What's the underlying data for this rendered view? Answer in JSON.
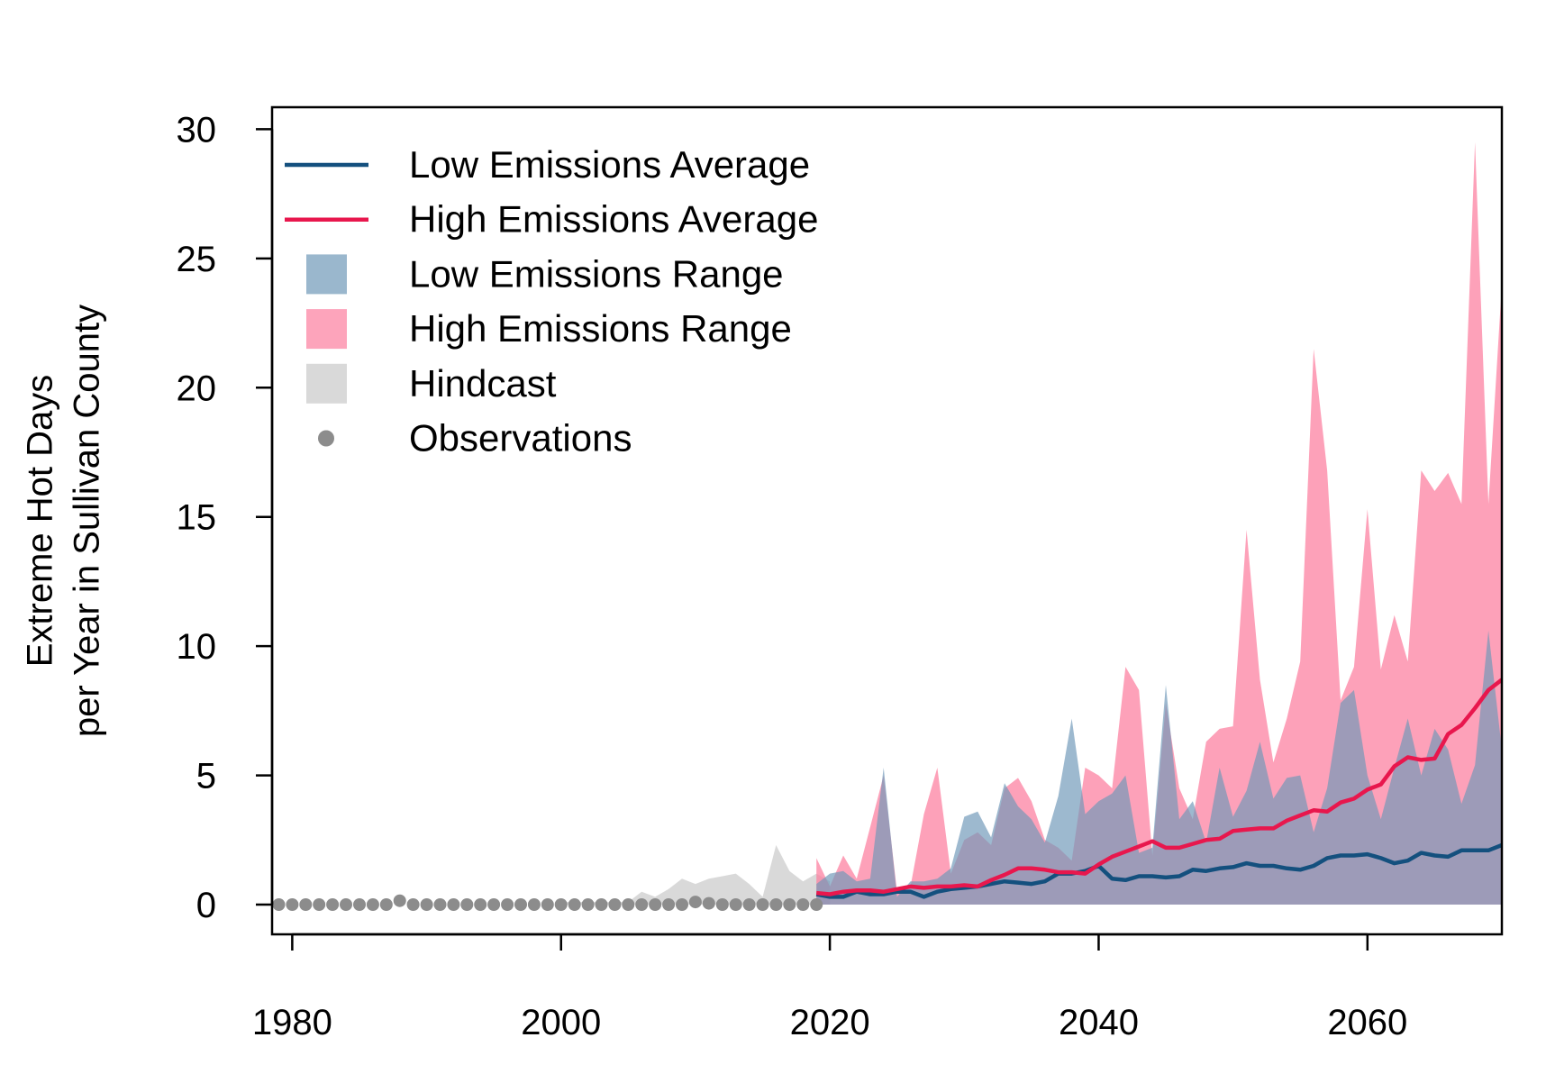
{
  "chart_data": {
    "type": "area",
    "title": "",
    "xlabel": "",
    "ylabel_lines": [
      "Extreme Hot Days",
      "per Year in Sullivan County"
    ],
    "xlim": [
      1978.5,
      2070
    ],
    "ylim": [
      -1.15,
      30.85
    ],
    "x_ticks": [
      1980,
      2000,
      2020,
      2040,
      2060
    ],
    "y_ticks": [
      0,
      5,
      10,
      15,
      20,
      25,
      30
    ],
    "grid": false,
    "legend_position": "top-left",
    "colors": {
      "low_avg": "#14507e",
      "high_avg": "#e8174d",
      "low_range": "#6f98b8",
      "high_range": "#fc7d9e",
      "hindcast": "#c9c9c9",
      "observations": "#8c8c8c"
    },
    "legend": [
      {
        "label": "Low Emissions Average",
        "kind": "line",
        "color_key": "low_avg"
      },
      {
        "label": "High Emissions Average",
        "kind": "line",
        "color_key": "high_avg"
      },
      {
        "label": "Low Emissions Range",
        "kind": "box",
        "color_key": "low_range"
      },
      {
        "label": "High Emissions Range",
        "kind": "box",
        "color_key": "high_range"
      },
      {
        "label": "Hindcast",
        "kind": "box",
        "color_key": "hindcast"
      },
      {
        "label": "Observations",
        "kind": "dot",
        "color_key": "observations"
      }
    ],
    "observations": {
      "x": [
        1979,
        1980,
        1981,
        1982,
        1983,
        1984,
        1985,
        1986,
        1987,
        1988,
        1989,
        1990,
        1991,
        1992,
        1993,
        1994,
        1995,
        1996,
        1997,
        1998,
        1999,
        2000,
        2001,
        2002,
        2003,
        2004,
        2005,
        2006,
        2007,
        2008,
        2009,
        2010,
        2011,
        2012,
        2013,
        2014,
        2015,
        2016,
        2017,
        2018,
        2019
      ],
      "y": [
        0,
        0,
        0,
        0,
        0,
        0,
        0,
        0,
        0,
        0.15,
        0,
        0,
        0,
        0,
        0,
        0,
        0,
        0,
        0,
        0,
        0,
        0,
        0,
        0,
        0,
        0,
        0,
        0,
        0,
        0,
        0,
        0.1,
        0.05,
        0,
        0,
        0,
        0,
        0,
        0,
        0,
        0
      ]
    },
    "hindcast_range": {
      "x": [
        2000,
        2001,
        2002,
        2003,
        2004,
        2005,
        2006,
        2007,
        2008,
        2009,
        2010,
        2011,
        2012,
        2013,
        2014,
        2015,
        2016,
        2017,
        2018,
        2019,
        2020
      ],
      "upper": [
        0.1,
        0.1,
        0.1,
        0.1,
        0.1,
        0.1,
        0.5,
        0.3,
        0.6,
        1.0,
        0.8,
        1.0,
        1.1,
        1.2,
        0.8,
        0.3,
        2.3,
        1.3,
        0.9,
        1.2,
        0.9
      ]
    },
    "high_range": {
      "x": [
        2019,
        2020,
        2021,
        2022,
        2023,
        2024,
        2025,
        2026,
        2027,
        2028,
        2029,
        2030,
        2031,
        2032,
        2033,
        2034,
        2035,
        2036,
        2037,
        2038,
        2039,
        2040,
        2041,
        2042,
        2043,
        2044,
        2045,
        2046,
        2047,
        2048,
        2049,
        2050,
        2051,
        2052,
        2053,
        2054,
        2055,
        2056,
        2057,
        2058,
        2059,
        2060,
        2061,
        2062,
        2063,
        2064,
        2065,
        2066,
        2067,
        2068,
        2069,
        2070
      ],
      "upper": [
        1.8,
        0.7,
        1.9,
        1.0,
        3.0,
        5.0,
        0.5,
        0.7,
        3.5,
        5.3,
        1.2,
        2.5,
        2.8,
        2.3,
        4.5,
        4.9,
        4.0,
        2.5,
        2.2,
        1.7,
        5.3,
        5.0,
        4.5,
        9.2,
        8.3,
        1.9,
        7.8,
        4.5,
        3.3,
        6.3,
        6.8,
        6.9,
        14.5,
        8.7,
        5.5,
        7.2,
        9.4,
        21.5,
        16.8,
        7.9,
        9.2,
        15.3,
        9.1,
        11.2,
        9.4,
        16.8,
        16.0,
        16.7,
        15.5,
        29.5,
        15.5,
        24.0
      ]
    },
    "low_range": {
      "x": [
        2019,
        2020,
        2021,
        2022,
        2023,
        2024,
        2025,
        2026,
        2027,
        2028,
        2029,
        2030,
        2031,
        2032,
        2033,
        2034,
        2035,
        2036,
        2037,
        2038,
        2039,
        2040,
        2041,
        2042,
        2043,
        2044,
        2045,
        2046,
        2047,
        2048,
        2049,
        2050,
        2051,
        2052,
        2053,
        2054,
        2055,
        2056,
        2057,
        2058,
        2059,
        2060,
        2061,
        2062,
        2063,
        2064,
        2065,
        2066,
        2067,
        2068,
        2069,
        2070
      ],
      "upper": [
        0.8,
        1.2,
        1.3,
        0.9,
        1.0,
        5.3,
        0.3,
        0.9,
        0.9,
        1.0,
        1.4,
        3.4,
        3.6,
        2.6,
        4.7,
        3.8,
        3.3,
        2.4,
        4.2,
        7.2,
        3.5,
        4.0,
        4.3,
        5.0,
        2.0,
        2.2,
        8.5,
        3.3,
        4.0,
        2.4,
        5.3,
        3.4,
        4.4,
        6.3,
        4.1,
        4.9,
        5.0,
        2.8,
        4.5,
        7.8,
        8.3,
        5.0,
        3.3,
        5.3,
        7.2,
        5.0,
        6.8,
        6.0,
        3.9,
        5.4,
        10.6,
        6.0
      ]
    },
    "low_avg": {
      "x": [
        2019,
        2020,
        2021,
        2022,
        2023,
        2024,
        2025,
        2026,
        2027,
        2028,
        2029,
        2030,
        2031,
        2032,
        2033,
        2034,
        2035,
        2036,
        2037,
        2038,
        2039,
        2040,
        2041,
        2042,
        2043,
        2044,
        2045,
        2046,
        2047,
        2048,
        2049,
        2050,
        2051,
        2052,
        2053,
        2054,
        2055,
        2056,
        2057,
        2058,
        2059,
        2060,
        2061,
        2062,
        2063,
        2064,
        2065,
        2066,
        2067,
        2068,
        2069,
        2070
      ],
      "y": [
        0.4,
        0.3,
        0.3,
        0.5,
        0.4,
        0.4,
        0.5,
        0.5,
        0.3,
        0.5,
        0.6,
        0.65,
        0.7,
        0.8,
        0.9,
        0.85,
        0.8,
        0.9,
        1.2,
        1.2,
        1.3,
        1.5,
        1.0,
        0.95,
        1.1,
        1.1,
        1.05,
        1.1,
        1.35,
        1.3,
        1.4,
        1.45,
        1.6,
        1.5,
        1.5,
        1.4,
        1.35,
        1.5,
        1.8,
        1.9,
        1.9,
        1.95,
        1.8,
        1.6,
        1.7,
        2.0,
        1.9,
        1.85,
        2.1,
        2.1,
        2.1,
        2.3
      ]
    },
    "high_avg": {
      "x": [
        2019,
        2020,
        2021,
        2022,
        2023,
        2024,
        2025,
        2026,
        2027,
        2028,
        2029,
        2030,
        2031,
        2032,
        2033,
        2034,
        2035,
        2036,
        2037,
        2038,
        2039,
        2040,
        2041,
        2042,
        2043,
        2044,
        2045,
        2046,
        2047,
        2048,
        2049,
        2050,
        2051,
        2052,
        2053,
        2054,
        2055,
        2056,
        2057,
        2058,
        2059,
        2060,
        2061,
        2062,
        2063,
        2064,
        2065,
        2066,
        2067,
        2068,
        2069,
        2070
      ],
      "y": [
        0.45,
        0.4,
        0.5,
        0.55,
        0.55,
        0.5,
        0.6,
        0.7,
        0.65,
        0.7,
        0.7,
        0.75,
        0.7,
        0.95,
        1.15,
        1.4,
        1.4,
        1.35,
        1.25,
        1.25,
        1.2,
        1.55,
        1.85,
        2.05,
        2.25,
        2.45,
        2.2,
        2.2,
        2.35,
        2.5,
        2.55,
        2.85,
        2.9,
        2.95,
        2.95,
        3.25,
        3.45,
        3.65,
        3.6,
        3.95,
        4.1,
        4.45,
        4.65,
        5.35,
        5.7,
        5.6,
        5.65,
        6.6,
        6.95,
        7.6,
        8.3,
        8.7
      ]
    }
  }
}
